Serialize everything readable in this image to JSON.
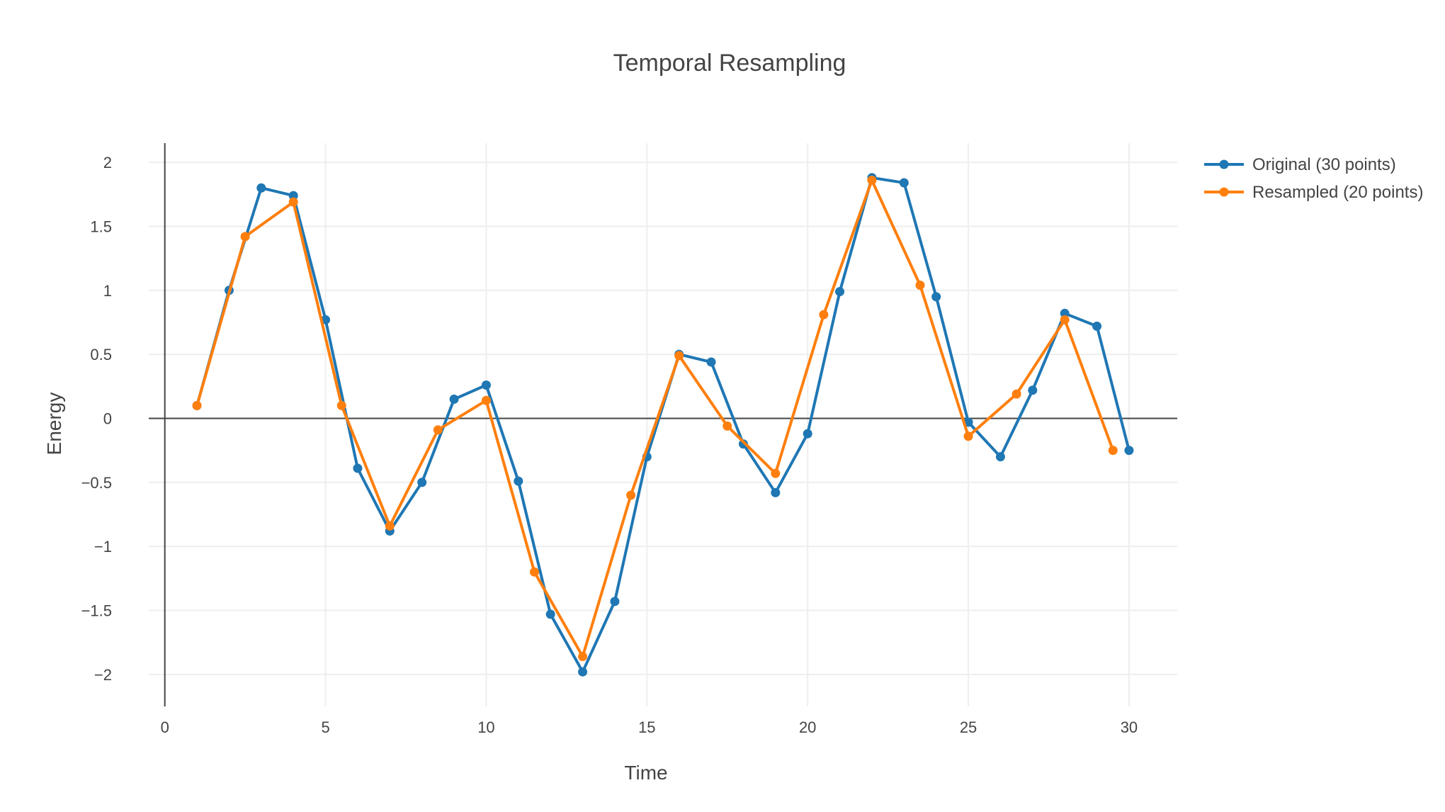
{
  "chart_data": {
    "type": "line",
    "title": "Temporal Resampling",
    "xlabel": "Time",
    "ylabel": "Energy",
    "xlim": [
      -0.5,
      31.5
    ],
    "ylim": [
      -2.25,
      2.15
    ],
    "xticks": [
      0,
      5,
      10,
      15,
      20,
      25,
      30
    ],
    "xtick_labels": [
      "0",
      "5",
      "10",
      "15",
      "20",
      "25",
      "30"
    ],
    "yticks": [
      -2,
      -1.5,
      -1,
      -0.5,
      0,
      0.5,
      1,
      1.5,
      2
    ],
    "ytick_labels": [
      "−2",
      "−1.5",
      "−1",
      "−0.5",
      "0",
      "0.5",
      "1",
      "1.5",
      "2"
    ],
    "grid": true,
    "legend_position": "top-right",
    "series": [
      {
        "name": "Original (30 points)",
        "color": "#1f77b4",
        "x": [
          1,
          2,
          3,
          4,
          5,
          6,
          7,
          8,
          9,
          10,
          11,
          12,
          13,
          14,
          15,
          16,
          17,
          18,
          19,
          20,
          21,
          22,
          23,
          24,
          25,
          26,
          27,
          28,
          29,
          30
        ],
        "y": [
          0.1,
          1.0,
          1.8,
          1.74,
          0.77,
          -0.39,
          -0.88,
          -0.5,
          0.15,
          0.26,
          -0.49,
          -1.53,
          -1.98,
          -1.43,
          -0.3,
          0.5,
          0.44,
          -0.2,
          -0.58,
          -0.12,
          0.99,
          1.88,
          1.84,
          0.95,
          -0.03,
          -0.3,
          0.22,
          0.82,
          0.72,
          -0.25
        ]
      },
      {
        "name": "Resampled (20 points)",
        "color": "#ff7f0e",
        "x": [
          1,
          2.5,
          4,
          5.5,
          7,
          8.5,
          10,
          11.5,
          13,
          14.5,
          16,
          17.5,
          19,
          20.5,
          22,
          23.5,
          25,
          26.5,
          28,
          29.5
        ],
        "y": [
          0.1,
          1.42,
          1.69,
          0.1,
          -0.84,
          -0.09,
          0.14,
          -1.2,
          -1.86,
          -0.6,
          0.49,
          -0.06,
          -0.43,
          0.81,
          1.86,
          1.04,
          -0.14,
          0.19,
          0.77,
          -0.25
        ]
      }
    ]
  }
}
